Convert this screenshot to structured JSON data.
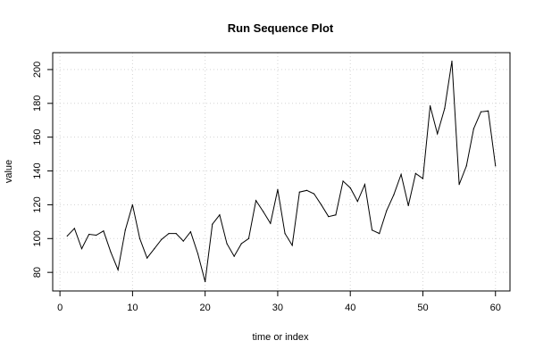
{
  "chart_data": {
    "type": "line",
    "title": "Run Sequence Plot",
    "xlabel": "time or index",
    "ylabel": "value",
    "xlim": [
      -1,
      62
    ],
    "ylim": [
      69,
      210
    ],
    "x_ticks": [
      0,
      10,
      20,
      30,
      40,
      50,
      60
    ],
    "y_ticks": [
      80,
      100,
      120,
      140,
      160,
      180,
      200
    ],
    "grid": true,
    "grid_style": "dotted",
    "series": [
      {
        "color": "#000000",
        "x": [
          1,
          2,
          3,
          4,
          5,
          6,
          7,
          8,
          9,
          10,
          11,
          12,
          13,
          14,
          15,
          16,
          17,
          18,
          19,
          20,
          21,
          22,
          23,
          24,
          25,
          26,
          27,
          28,
          29,
          30,
          31,
          32,
          33,
          34,
          35,
          36,
          37,
          38,
          39,
          40,
          41,
          42,
          43,
          44,
          45,
          46,
          47,
          48,
          49,
          50,
          51,
          52,
          53,
          54,
          55,
          56,
          57,
          58,
          59,
          60
        ],
        "values": [
          101.5,
          106,
          94,
          102.5,
          102,
          104.5,
          92,
          81.5,
          105,
          120,
          100,
          88.5,
          94,
          99.5,
          103,
          103,
          98.5,
          104,
          91,
          74.5,
          108.5,
          114,
          97,
          89.5,
          97,
          100,
          122.5,
          116,
          109,
          129,
          103,
          96,
          127.5,
          128.5,
          126.5,
          120,
          113,
          114,
          134,
          130,
          122,
          132,
          105,
          103,
          116.5,
          126,
          138,
          119.5,
          138.5,
          135.5,
          178.5,
          162,
          177,
          205,
          132,
          143,
          165,
          175,
          175.5,
          143
        ]
      }
    ]
  }
}
